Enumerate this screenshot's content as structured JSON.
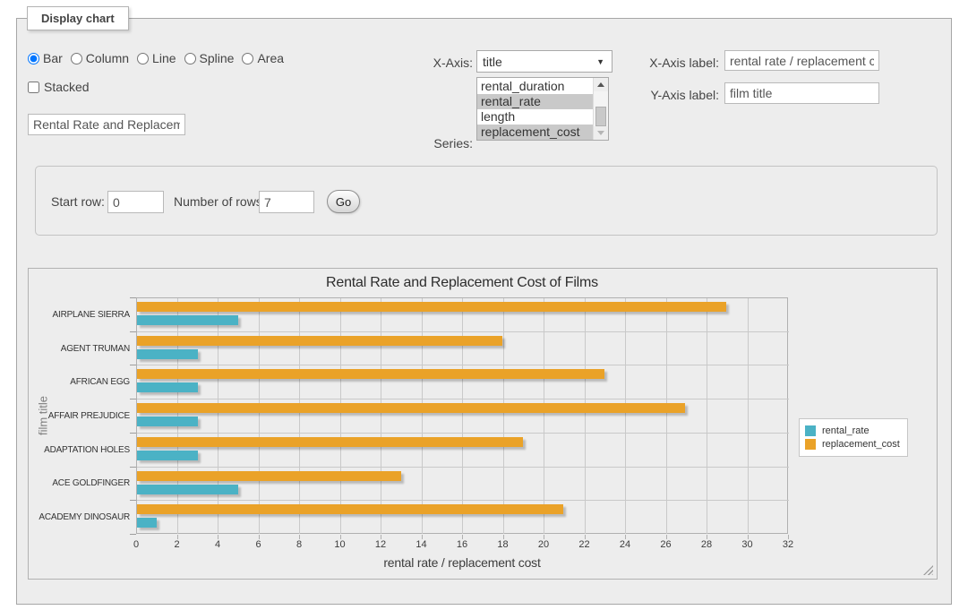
{
  "panel": {
    "legend": "Display chart"
  },
  "chart_types": {
    "options": [
      "Bar",
      "Column",
      "Line",
      "Spline",
      "Area"
    ],
    "selected": "Bar"
  },
  "stacked": {
    "label": "Stacked",
    "checked": false
  },
  "chart_title_input": {
    "value": "Rental Rate and Replacement Cost of Films"
  },
  "x_axis": {
    "label": "X-Axis:",
    "selected": "title"
  },
  "series_select": {
    "label": "Series:",
    "options": [
      {
        "label": "rental_duration",
        "selected": false
      },
      {
        "label": "rental_rate",
        "selected": true
      },
      {
        "label": "length",
        "selected": false
      },
      {
        "label": "replacement_cost",
        "selected": true
      }
    ]
  },
  "x_axis_label_field": {
    "label": "X-Axis label:",
    "value": "rental rate / replacement cost"
  },
  "y_axis_label_field": {
    "label": "Y-Axis label:",
    "value": "film title"
  },
  "rows_panel": {
    "start_row_label": "Start row:",
    "start_row_value": "0",
    "num_rows_label": "Number of rows:",
    "num_rows_value": "7",
    "go_label": "Go"
  },
  "chart_data": {
    "type": "bar",
    "orientation": "horizontal",
    "title": "Rental Rate and Replacement Cost of Films",
    "xlabel": "rental rate / replacement cost",
    "ylabel": "film title",
    "categories": [
      "AIRPLANE SIERRA",
      "AGENT TRUMAN",
      "AFRICAN EGG",
      "AFFAIR PREJUDICE",
      "ADAPTATION HOLES",
      "ACE GOLDFINGER",
      "ACADEMY DINOSAUR"
    ],
    "series": [
      {
        "name": "rental_rate",
        "color": "#4bb2c5",
        "values": [
          4.99,
          2.99,
          2.99,
          2.99,
          2.99,
          4.99,
          0.99
        ]
      },
      {
        "name": "replacement_cost",
        "color": "#eaa228",
        "values": [
          28.99,
          17.99,
          22.99,
          26.99,
          18.99,
          12.99,
          20.99
        ]
      }
    ],
    "xlim": [
      0,
      32
    ],
    "x_ticks": [
      0,
      2,
      4,
      6,
      8,
      10,
      12,
      14,
      16,
      18,
      20,
      22,
      24,
      26,
      28,
      30,
      32
    ],
    "grid": true,
    "legend_position": "right",
    "bar_row_order_top_to_bottom": [
      "replacement_cost",
      "rental_rate"
    ]
  }
}
